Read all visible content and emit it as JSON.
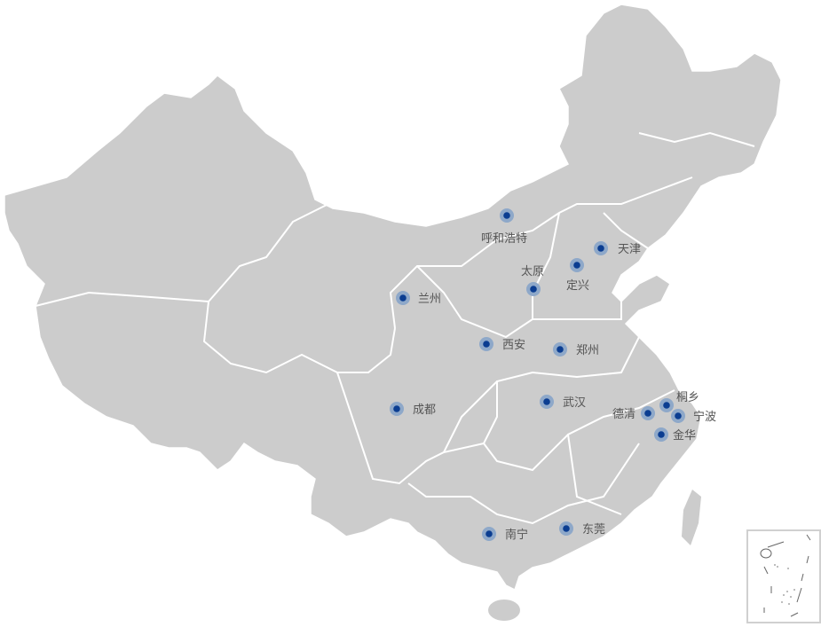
{
  "map": {
    "land_color": "#cccccc",
    "border_color": "#ffffff",
    "marker_color": "#0b3d91",
    "marker_halo_color": "#8ea8c9",
    "cities": [
      {
        "name": "呼和浩特"
      },
      {
        "name": "天津"
      },
      {
        "name": "太原"
      },
      {
        "name": "定兴"
      },
      {
        "name": "兰州"
      },
      {
        "name": "西安"
      },
      {
        "name": "郑州"
      },
      {
        "name": "成都"
      },
      {
        "name": "武汉"
      },
      {
        "name": "桐乡"
      },
      {
        "name": "德清"
      },
      {
        "name": "宁波"
      },
      {
        "name": "金华"
      },
      {
        "name": "南宁"
      },
      {
        "name": "东莞"
      }
    ]
  }
}
